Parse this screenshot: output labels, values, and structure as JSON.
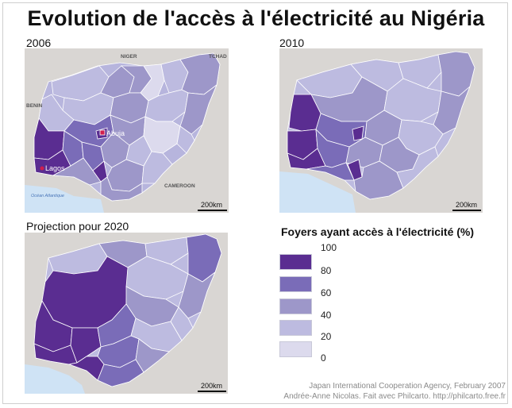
{
  "title": "Evolution de l'accès à l'électricité au Nigéria",
  "maps": [
    {
      "year_label": "2006",
      "scale_label": "200km",
      "labels": {
        "niger": "NIGER",
        "tchad": "TCHAD",
        "benin": "BENIN",
        "cameroon": "CAMEROON",
        "ocean": "Océan Atlantique",
        "abuja": "Abuja",
        "lagos": "Lagos"
      }
    },
    {
      "year_label": "2010",
      "scale_label": "200km"
    },
    {
      "year_label": "Projection pour 2020",
      "scale_label": "200km"
    }
  ],
  "legend": {
    "title": "Foyers ayant accès à l'électricité (%)",
    "ticks": [
      "100",
      "80",
      "60",
      "40",
      "20",
      "0"
    ],
    "colors": [
      "#5a2d91",
      "#7a6cb8",
      "#9d97c9",
      "#bdbbe0",
      "#dcdaed"
    ]
  },
  "credits": {
    "line1": "Japan International Cooperation Agency, February 2007",
    "line2": "Andrée-Anne Nicolas. Fait avec Philcarto. http://philcarto.free.fr"
  }
}
